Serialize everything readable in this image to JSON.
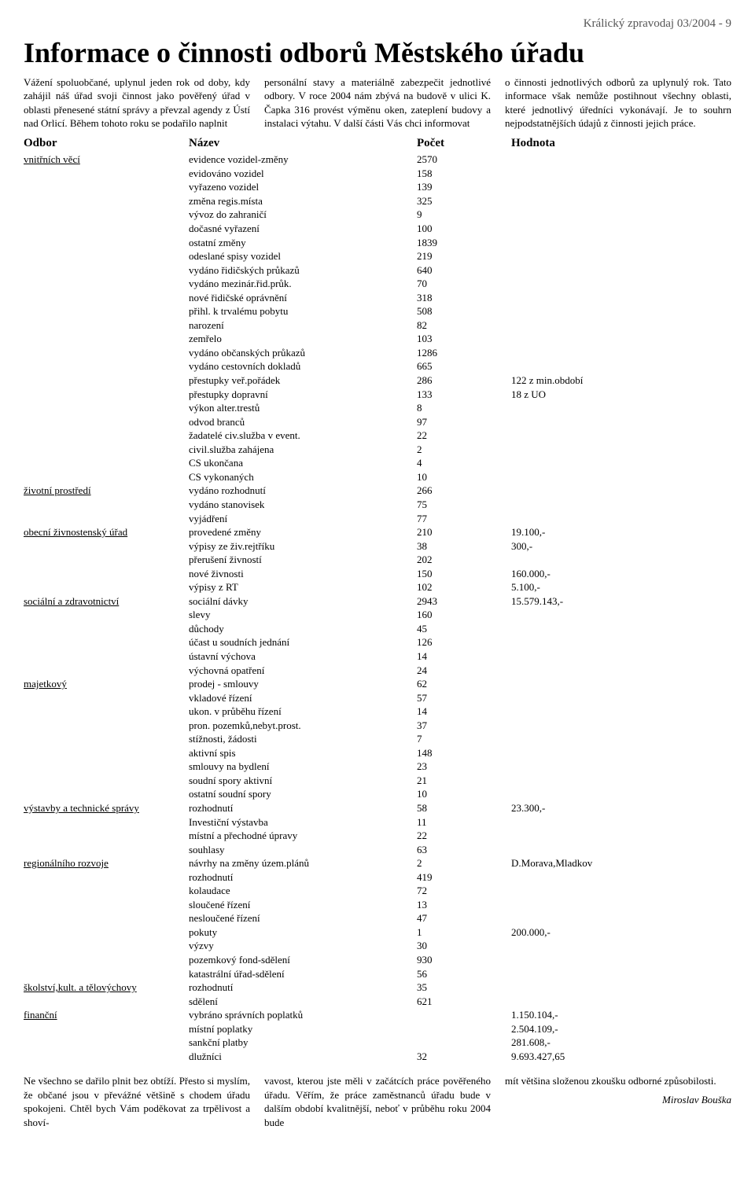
{
  "header": "Králický zpravodaj 03/2004 - 9",
  "title": "Informace o činnosti odborů Městského úřadu",
  "intro": {
    "col1": "Vážení spoluobčané,\nuplynul jeden rok od doby, kdy zahájil náš úřad svoji činnost jako pověřený úřad v oblasti přenesené státní správy a převzal agendy z Ústí nad Orlicí.\nBěhem tohoto roku se podařilo naplnit",
    "col2": "personální stavy a materiálně zabezpečit jednotlivé odbory. V roce 2004 nám zbývá na budově v ulici K. Čapka 316 provést výměnu oken, zateplení budovy a instalaci výtahu.\nV další části Vás chci informovat",
    "col3": "o činnosti jednotlivých odborů za uplynulý rok. Tato informace však nemůže postihnout všechny oblasti, které jednotlivý úředníci vykonávají. Je to souhrn nejpodstatnějších údajů z činnosti jejich práce."
  },
  "table_headers": {
    "odbor": "Odbor",
    "nazev": "Název",
    "pocet": "Počet",
    "hodnota": "Hodnota"
  },
  "rows": [
    {
      "odbor": "vnitřních věcí",
      "nazev": "evidence vozidel-změny",
      "pocet": "2570",
      "hodnota": ""
    },
    {
      "odbor": "",
      "nazev": "evidováno vozidel",
      "pocet": "158",
      "hodnota": ""
    },
    {
      "odbor": "",
      "nazev": "vyřazeno vozidel",
      "pocet": "139",
      "hodnota": ""
    },
    {
      "odbor": "",
      "nazev": "změna regis.místa",
      "pocet": "325",
      "hodnota": ""
    },
    {
      "odbor": "",
      "nazev": "vývoz do zahraničí",
      "pocet": "9",
      "hodnota": ""
    },
    {
      "odbor": "",
      "nazev": "dočasné vyřazení",
      "pocet": "100",
      "hodnota": ""
    },
    {
      "odbor": "",
      "nazev": "ostatní změny",
      "pocet": "1839",
      "hodnota": ""
    },
    {
      "odbor": "",
      "nazev": "odeslané spisy vozidel",
      "pocet": "219",
      "hodnota": ""
    },
    {
      "odbor": "",
      "nazev": "vydáno řidičských průkazů",
      "pocet": "640",
      "hodnota": ""
    },
    {
      "odbor": "",
      "nazev": "vydáno mezinár.řid.průk.",
      "pocet": "70",
      "hodnota": ""
    },
    {
      "odbor": "",
      "nazev": "nové řidičské oprávnění",
      "pocet": "318",
      "hodnota": ""
    },
    {
      "odbor": "",
      "nazev": "přihl. k trvalému pobytu",
      "pocet": "508",
      "hodnota": ""
    },
    {
      "odbor": "",
      "nazev": "narození",
      "pocet": "82",
      "hodnota": ""
    },
    {
      "odbor": "",
      "nazev": "zemřelo",
      "pocet": "103",
      "hodnota": ""
    },
    {
      "odbor": "",
      "nazev": "vydáno občanských průkazů",
      "pocet": "1286",
      "hodnota": ""
    },
    {
      "odbor": "",
      "nazev": "vydáno cestovních dokladů",
      "pocet": "665",
      "hodnota": ""
    },
    {
      "odbor": "",
      "nazev": "přestupky veř.pořádek",
      "pocet": "286",
      "hodnota": "122 z min.období"
    },
    {
      "odbor": "",
      "nazev": "přestupky dopravní",
      "pocet": "133",
      "hodnota": "18 z UO"
    },
    {
      "odbor": "",
      "nazev": "výkon alter.trestů",
      "pocet": "8",
      "hodnota": ""
    },
    {
      "odbor": "",
      "nazev": "odvod branců",
      "pocet": "97",
      "hodnota": ""
    },
    {
      "odbor": "",
      "nazev": "žadatelé civ.služba v event.",
      "pocet": "22",
      "hodnota": ""
    },
    {
      "odbor": "",
      "nazev": "civil.služba zahájena",
      "pocet": "2",
      "hodnota": ""
    },
    {
      "odbor": "",
      "nazev": "CS ukončana",
      "pocet": "4",
      "hodnota": ""
    },
    {
      "odbor": "",
      "nazev": "CS vykonaných",
      "pocet": "10",
      "hodnota": ""
    },
    {
      "odbor": "životní prostředí",
      "nazev": "vydáno rozhodnutí",
      "pocet": "266",
      "hodnota": ""
    },
    {
      "odbor": "",
      "nazev": "vydáno stanovisek",
      "pocet": "75",
      "hodnota": ""
    },
    {
      "odbor": "",
      "nazev": "vyjádření",
      "pocet": "77",
      "hodnota": ""
    },
    {
      "odbor": "obecní živnostenský úřad",
      "nazev": "provedené změny",
      "pocet": "210",
      "hodnota": "19.100,-"
    },
    {
      "odbor": "",
      "nazev": "výpisy ze živ.rejtříku",
      "pocet": "38",
      "hodnota": "300,-"
    },
    {
      "odbor": "",
      "nazev": "přerušení živností",
      "pocet": "202",
      "hodnota": ""
    },
    {
      "odbor": "",
      "nazev": "nové živnosti",
      "pocet": "150",
      "hodnota": "160.000,-"
    },
    {
      "odbor": "",
      "nazev": "výpisy z RT",
      "pocet": "102",
      "hodnota": "5.100,-"
    },
    {
      "odbor": "sociální a zdravotnictví",
      "nazev": "sociální dávky",
      "pocet": "2943",
      "hodnota": "15.579.143,-"
    },
    {
      "odbor": "",
      "nazev": "slevy",
      "pocet": "160",
      "hodnota": ""
    },
    {
      "odbor": "",
      "nazev": "důchody",
      "pocet": "45",
      "hodnota": ""
    },
    {
      "odbor": "",
      "nazev": "účast u soudních jednání",
      "pocet": "126",
      "hodnota": ""
    },
    {
      "odbor": "",
      "nazev": "ústavní výchova",
      "pocet": "14",
      "hodnota": ""
    },
    {
      "odbor": "",
      "nazev": "výchovná opatření",
      "pocet": "24",
      "hodnota": ""
    },
    {
      "odbor": "majetkový",
      "nazev": "prodej - smlouvy",
      "pocet": "62",
      "hodnota": ""
    },
    {
      "odbor": "",
      "nazev": "vkladové řízení",
      "pocet": "57",
      "hodnota": ""
    },
    {
      "odbor": "",
      "nazev": "ukon. v průběhu řízení",
      "pocet": "14",
      "hodnota": ""
    },
    {
      "odbor": "",
      "nazev": "pron. pozemků,nebyt.prost.",
      "pocet": "37",
      "hodnota": ""
    },
    {
      "odbor": "",
      "nazev": "stížnosti, žádosti",
      "pocet": "7",
      "hodnota": ""
    },
    {
      "odbor": "",
      "nazev": "aktivní spis",
      "pocet": "148",
      "hodnota": ""
    },
    {
      "odbor": "",
      "nazev": "smlouvy na bydlení",
      "pocet": "23",
      "hodnota": ""
    },
    {
      "odbor": "",
      "nazev": "soudní spory aktivní",
      "pocet": "21",
      "hodnota": ""
    },
    {
      "odbor": "",
      "nazev": "ostatní soudní spory",
      "pocet": "10",
      "hodnota": ""
    },
    {
      "odbor": "výstavby a technické správy",
      "nazev": "rozhodnutí",
      "pocet": "58",
      "hodnota": "23.300,-"
    },
    {
      "odbor": "",
      "nazev": "Investiční výstavba",
      "pocet": "11",
      "hodnota": ""
    },
    {
      "odbor": "",
      "nazev": "místní a přechodné úpravy",
      "pocet": "22",
      "hodnota": ""
    },
    {
      "odbor": "",
      "nazev": "souhlasy",
      "pocet": "63",
      "hodnota": ""
    },
    {
      "odbor": "regionálního rozvoje",
      "nazev": "návrhy na změny územ.plánů",
      "pocet": "2",
      "hodnota": "D.Morava,Mladkov"
    },
    {
      "odbor": "",
      "nazev": "rozhodnutí",
      "pocet": "419",
      "hodnota": ""
    },
    {
      "odbor": "",
      "nazev": "kolaudace",
      "pocet": "72",
      "hodnota": ""
    },
    {
      "odbor": "",
      "nazev": "sloučené řízení",
      "pocet": "13",
      "hodnota": ""
    },
    {
      "odbor": "",
      "nazev": "nesloučené řízení",
      "pocet": "47",
      "hodnota": ""
    },
    {
      "odbor": "",
      "nazev": "pokuty",
      "pocet": "1",
      "hodnota": "200.000,-"
    },
    {
      "odbor": "",
      "nazev": "výzvy",
      "pocet": "30",
      "hodnota": ""
    },
    {
      "odbor": "",
      "nazev": "pozemkový fond-sdělení",
      "pocet": "930",
      "hodnota": ""
    },
    {
      "odbor": "",
      "nazev": "katastrální úřad-sdělení",
      "pocet": "56",
      "hodnota": ""
    },
    {
      "odbor": "školství,kult. a tělovýchovy",
      "nazev": "rozhodnutí",
      "pocet": "35",
      "hodnota": ""
    },
    {
      "odbor": "",
      "nazev": "sdělení",
      "pocet": "621",
      "hodnota": ""
    },
    {
      "odbor": "finanční",
      "nazev": "vybráno správních poplatků",
      "pocet": "",
      "hodnota": "1.150.104,-"
    },
    {
      "odbor": "",
      "nazev": "místní poplatky",
      "pocet": "",
      "hodnota": "2.504.109,-"
    },
    {
      "odbor": "",
      "nazev": "sankční platby",
      "pocet": "",
      "hodnota": "281.608,-"
    },
    {
      "odbor": "",
      "nazev": "dlužníci",
      "pocet": "32",
      "hodnota": "9.693.427,65"
    }
  ],
  "outro": {
    "col1": "Ne všechno se dařilo plnit bez obtíží. Přesto si myslím, že občané jsou v převážné většině s chodem úřadu spokojeni. Chtěl bych Vám poděkovat za trpělivost a shoví-",
    "col2": "vavost, kterou jste měli v začátcích práce pověřeného úřadu. Věřím, že práce zaměstnanců úřadu bude v dalším období kvalitnější, neboť v průběhu roku 2004 bude",
    "col3": "mít většina složenou zkoušku odborné způsobilosti."
  },
  "signature": "Miroslav Bouška"
}
